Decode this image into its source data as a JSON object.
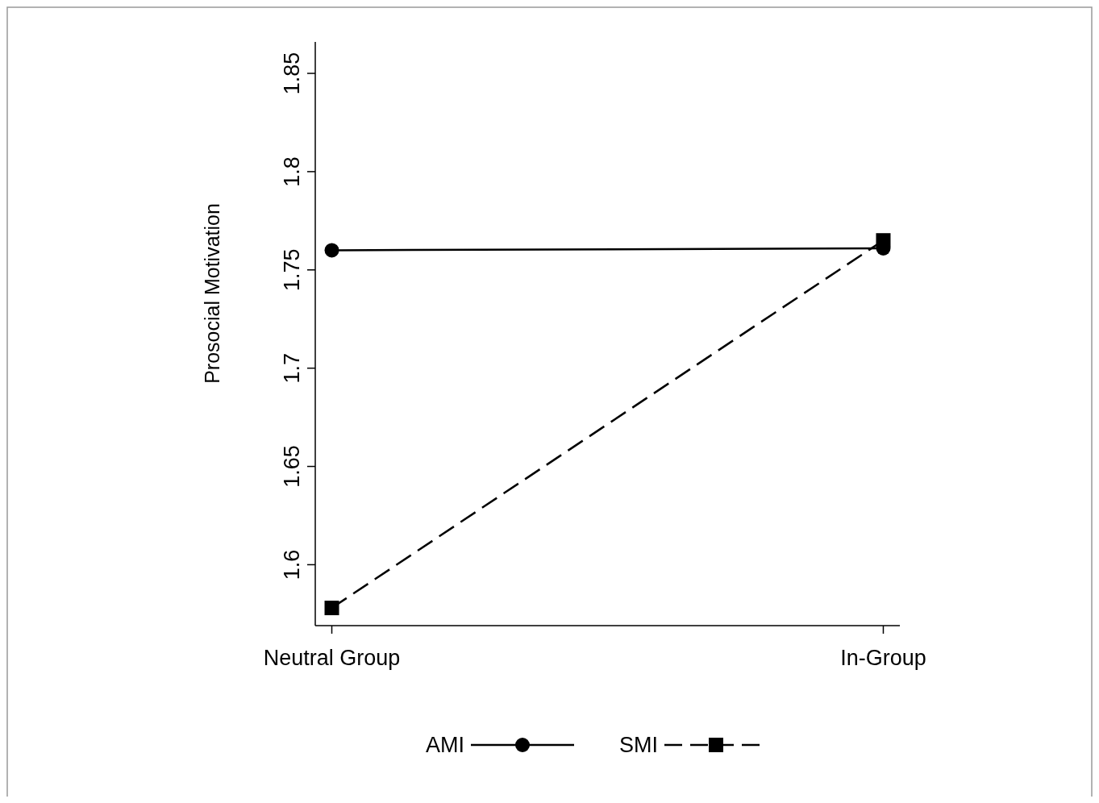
{
  "chart_data": {
    "type": "line",
    "ylabel": "Prosocial Motivation",
    "categories": [
      "Neutral Group",
      "In-Group"
    ],
    "series": [
      {
        "name": "AMI",
        "color": "#000000",
        "values": [
          1.76,
          1.761
        ],
        "marker": "circle",
        "line_style": "solid"
      },
      {
        "name": "SMI",
        "color": "#000000",
        "values": [
          1.578,
          1.765
        ],
        "marker": "square",
        "line_style": "dashed"
      }
    ],
    "ylim": [
      1.569,
      1.866
    ],
    "yticks": [
      1.6,
      1.65,
      1.7,
      1.75,
      1.8,
      1.85
    ],
    "grid": false,
    "legend": "bottom"
  }
}
